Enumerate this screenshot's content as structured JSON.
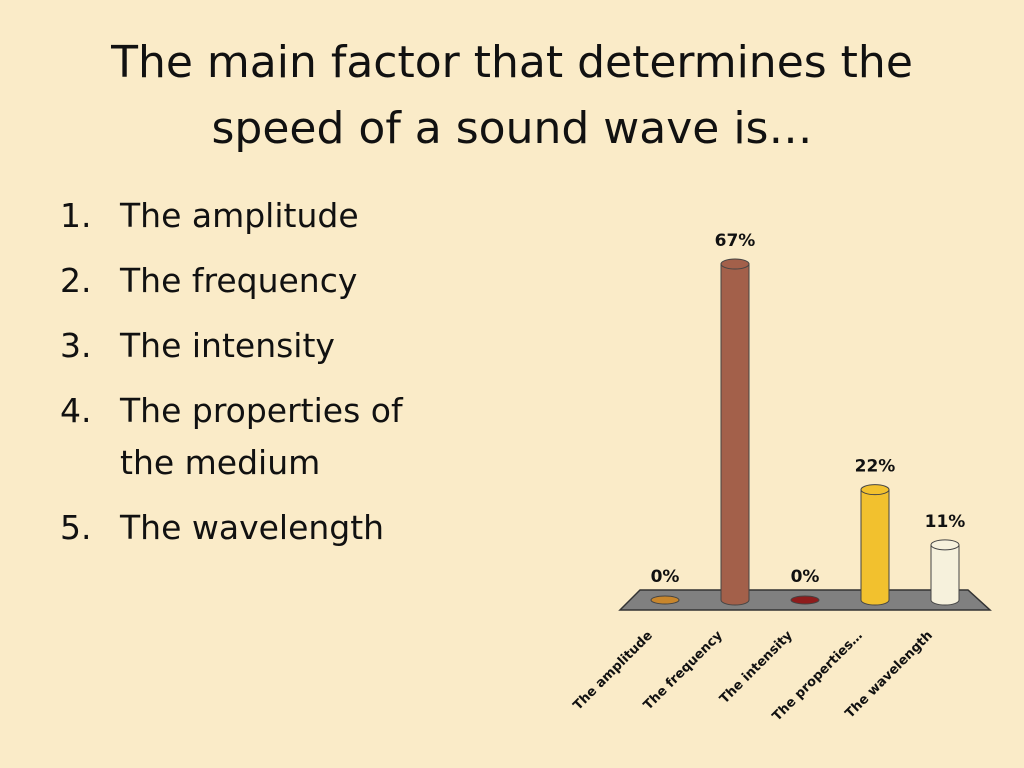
{
  "title": "The main factor that determines the speed of a sound wave is…",
  "list": [
    {
      "number": "1.",
      "text": "The amplitude"
    },
    {
      "number": "2.",
      "text": "The frequency"
    },
    {
      "number": "3.",
      "text": "The intensity"
    },
    {
      "number": "4.",
      "text": "The properties of the medium"
    },
    {
      "number": "5.",
      "text": "The wavelength"
    }
  ],
  "chart_data": {
    "type": "bar",
    "categories": [
      "The amplitude",
      "The frequency",
      "The intensity",
      "The properties…",
      "The wavelength"
    ],
    "values": [
      0,
      67,
      0,
      22,
      11
    ],
    "value_labels": [
      "0%",
      "67%",
      "0%",
      "22%",
      "11%"
    ],
    "colors": [
      "#c8862c",
      "#a3604a",
      "#8e1c1c",
      "#f2c12e",
      "#f6f1dc"
    ]
  }
}
